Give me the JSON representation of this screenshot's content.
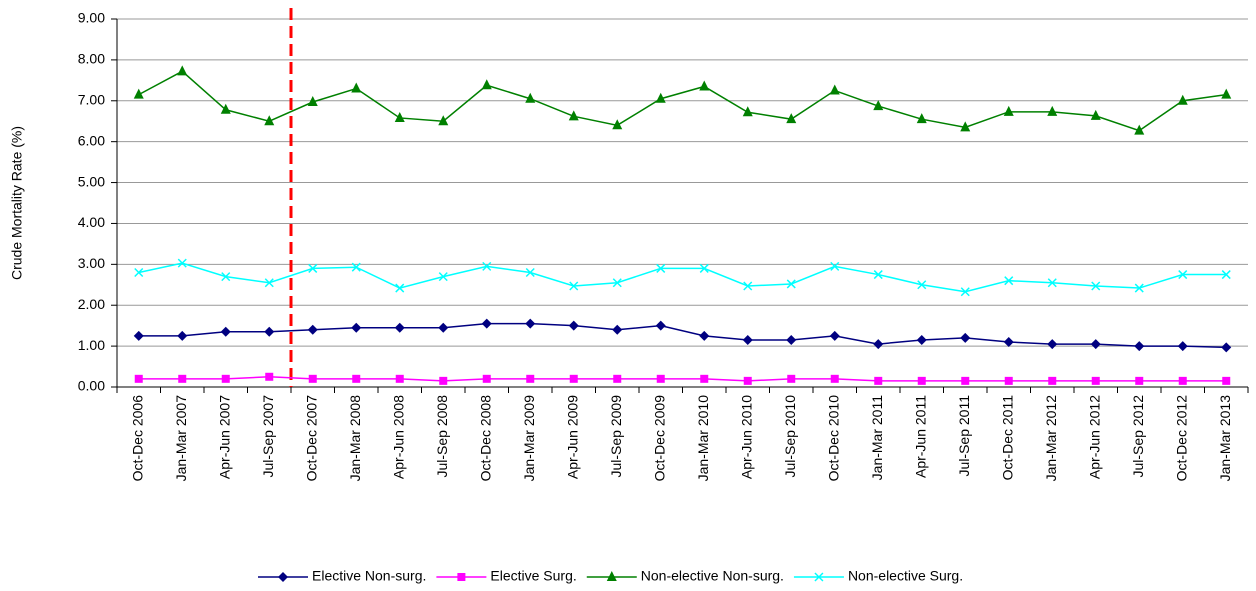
{
  "chart_data": {
    "type": "line",
    "y_label": "Crude Mortality Rate (%)",
    "categories": [
      "Oct-Dec 2006",
      "Jan-Mar 2007",
      "Apr-Jun 2007",
      "Jul-Sep 2007",
      "Oct-Dec 2007",
      "Jan-Mar 2008",
      "Apr-Jun 2008",
      "Jul-Sep 2008",
      "Oct-Dec 2008",
      "Jan-Mar 2009",
      "Apr-Jun 2009",
      "Jul-Sep 2009",
      "Oct-Dec 2009",
      "Jan-Mar 2010",
      "Apr-Jun 2010",
      "Jul-Sep 2010",
      "Oct-Dec 2010",
      "Jan-Mar 2011",
      "Apr-Jun 2011",
      "Jul-Sep 2011",
      "Oct-Dec 2011",
      "Jan-Mar 2012",
      "Apr-Jun 2012",
      "Jul-Sep 2012",
      "Oct-Dec 2012",
      "Jan-Mar 2013"
    ],
    "series": [
      {
        "name": "Elective Non-surg.",
        "color": "#000080",
        "marker": "diamond",
        "values": [
          1.25,
          1.25,
          1.35,
          1.35,
          1.4,
          1.45,
          1.45,
          1.45,
          1.55,
          1.55,
          1.5,
          1.4,
          1.5,
          1.25,
          1.15,
          1.15,
          1.25,
          1.05,
          1.15,
          1.2,
          1.1,
          1.05,
          1.05,
          1.0,
          1.0,
          0.97
        ]
      },
      {
        "name": "Elective Surg.",
        "color": "#ff00ff",
        "marker": "square",
        "values": [
          0.2,
          0.2,
          0.2,
          0.25,
          0.2,
          0.2,
          0.2,
          0.15,
          0.2,
          0.2,
          0.2,
          0.2,
          0.2,
          0.2,
          0.15,
          0.2,
          0.2,
          0.15,
          0.15,
          0.15,
          0.15,
          0.15,
          0.15,
          0.15,
          0.15,
          0.15
        ]
      },
      {
        "name": "Non-elective Non-surg.",
        "color": "#008000",
        "marker": "triangle",
        "values": [
          7.15,
          7.72,
          6.78,
          6.5,
          6.97,
          7.3,
          6.58,
          6.5,
          7.38,
          7.05,
          6.62,
          6.4,
          7.05,
          7.35,
          6.72,
          6.55,
          7.25,
          6.87,
          6.55,
          6.35,
          6.73,
          6.73,
          6.63,
          6.27,
          7.0,
          7.15
        ]
      },
      {
        "name": "Non-elective Surg.",
        "color": "#00ffff",
        "marker": "x",
        "values": [
          2.8,
          3.03,
          2.7,
          2.55,
          2.9,
          2.93,
          2.42,
          2.7,
          2.95,
          2.8,
          2.47,
          2.55,
          2.9,
          2.9,
          2.47,
          2.52,
          2.95,
          2.75,
          2.5,
          2.33,
          2.6,
          2.55,
          2.47,
          2.42,
          2.75,
          2.75
        ]
      }
    ],
    "ylim": [
      0,
      9
    ],
    "yticks": [
      {
        "value": 0,
        "label": "0.00"
      },
      {
        "value": 1,
        "label": "1.00"
      },
      {
        "value": 2,
        "label": "2.00"
      },
      {
        "value": 3,
        "label": "3.00"
      },
      {
        "value": 4,
        "label": "4.00"
      },
      {
        "value": 5,
        "label": "5.00"
      },
      {
        "value": 6,
        "label": "6.00"
      },
      {
        "value": 7,
        "label": "7.00"
      },
      {
        "value": 8,
        "label": "8.00"
      },
      {
        "value": 9,
        "label": "9.00"
      }
    ],
    "grid": true
  }
}
